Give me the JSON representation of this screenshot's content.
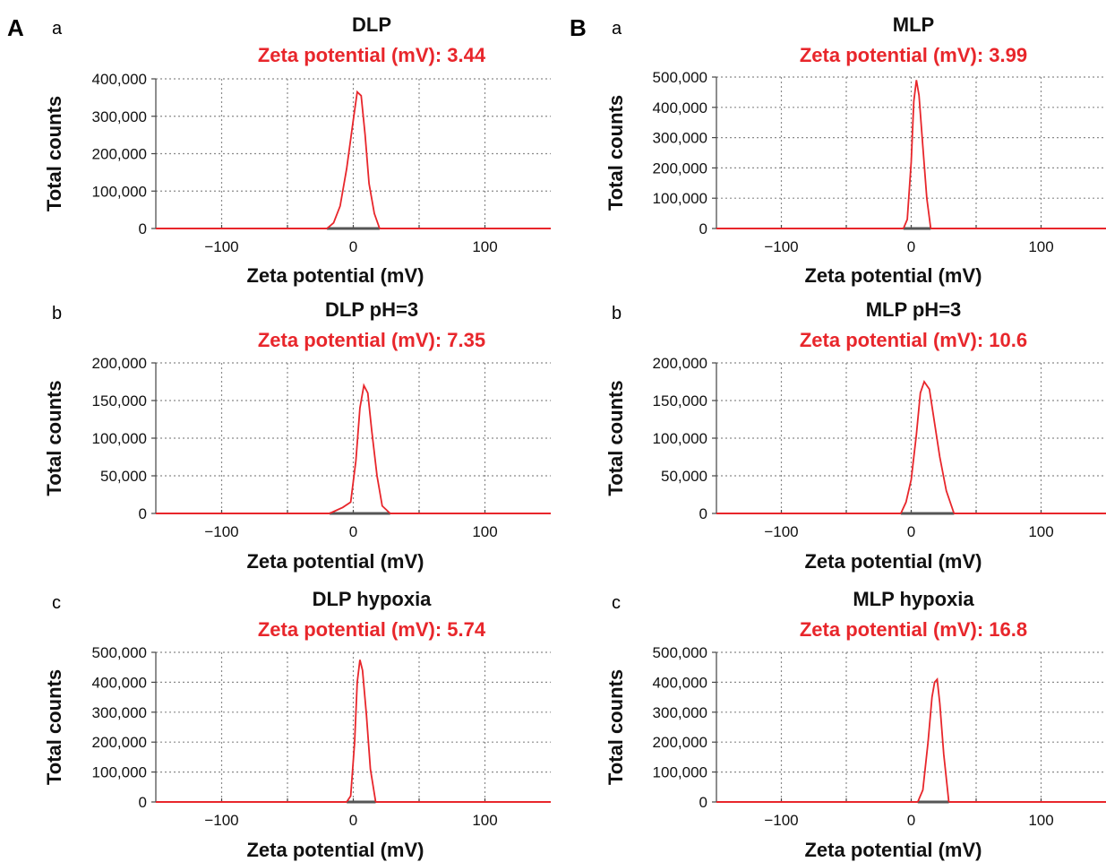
{
  "panels": [
    {
      "letter": "A"
    },
    {
      "letter": "B"
    }
  ],
  "chart_data": [
    {
      "type": "line",
      "sublabel": "a",
      "title": "DLP",
      "subtitle": "Zeta potential (mV): 3.44",
      "xlabel": "Zeta potential (mV)",
      "ylabel": "Total counts",
      "xlim": [
        -150,
        150
      ],
      "ylim": [
        0,
        400000
      ],
      "xticks": [
        -100,
        0,
        100
      ],
      "xtick_labels": [
        "−100",
        "0",
        "100"
      ],
      "yticks": [
        0,
        100000,
        200000,
        300000,
        400000
      ],
      "ytick_labels": [
        "0",
        "100,000",
        "200,000",
        "300,000",
        "400,000"
      ],
      "grid": true,
      "series": [
        {
          "color": "#e8262b",
          "x": [
            -150,
            -20,
            -15,
            -10,
            -5,
            0,
            3,
            6,
            9,
            12,
            16,
            20,
            150
          ],
          "y": [
            0,
            0,
            15000,
            60000,
            160000,
            290000,
            365000,
            355000,
            250000,
            120000,
            40000,
            0,
            0
          ]
        }
      ]
    },
    {
      "type": "line",
      "sublabel": "b",
      "title": "DLP pH=3",
      "subtitle": "Zeta potential (mV): 7.35",
      "xlabel": "Zeta potential (mV)",
      "ylabel": "Total counts",
      "xlim": [
        -150,
        150
      ],
      "ylim": [
        0,
        200000
      ],
      "xticks": [
        -100,
        0,
        100
      ],
      "xtick_labels": [
        "−100",
        "0",
        "100"
      ],
      "yticks": [
        0,
        50000,
        100000,
        150000,
        200000
      ],
      "ytick_labels": [
        "0",
        "50,000",
        "100,000",
        "150,000",
        "200,000"
      ],
      "grid": true,
      "series": [
        {
          "color": "#e8262b",
          "x": [
            -150,
            -18,
            -8,
            -2,
            2,
            5,
            8,
            11,
            14,
            18,
            22,
            28,
            150
          ],
          "y": [
            0,
            0,
            8000,
            15000,
            70000,
            140000,
            170000,
            160000,
            110000,
            50000,
            10000,
            0,
            0
          ]
        }
      ]
    },
    {
      "type": "line",
      "sublabel": "c",
      "title": "DLP hypoxia",
      "subtitle": "Zeta potential (mV): 5.74",
      "xlabel": "Zeta potential (mV)",
      "ylabel": "Total counts",
      "xlim": [
        -150,
        150
      ],
      "ylim": [
        0,
        500000
      ],
      "xticks": [
        -100,
        0,
        100
      ],
      "xtick_labels": [
        "−100",
        "0",
        "100"
      ],
      "yticks": [
        0,
        100000,
        200000,
        300000,
        400000,
        500000
      ],
      "ytick_labels": [
        "0",
        "100,000",
        "200,000",
        "300,000",
        "400,000",
        "500,000"
      ],
      "grid": true,
      "series": [
        {
          "color": "#e8262b",
          "x": [
            -150,
            -5,
            -2,
            1,
            3,
            5,
            7,
            10,
            13,
            17,
            150
          ],
          "y": [
            0,
            0,
            20000,
            200000,
            400000,
            475000,
            440000,
            290000,
            110000,
            0,
            0
          ]
        }
      ]
    },
    {
      "type": "line",
      "sublabel": "a",
      "title": "MLP",
      "subtitle": "Zeta potential (mV): 3.99",
      "xlabel": "Zeta potential (mV)",
      "ylabel": "Total counts",
      "xlim": [
        -150,
        150
      ],
      "ylim": [
        0,
        500000
      ],
      "xticks": [
        -100,
        0,
        100
      ],
      "xtick_labels": [
        "−100",
        "0",
        "100"
      ],
      "yticks": [
        0,
        100000,
        200000,
        300000,
        400000,
        500000
      ],
      "ytick_labels": [
        "0",
        "100,000",
        "200,000",
        "300,000",
        "400,000",
        "500,000"
      ],
      "grid": true,
      "series": [
        {
          "color": "#e8262b",
          "x": [
            -150,
            -6,
            -3,
            0,
            2,
            4,
            6,
            9,
            12,
            15,
            150
          ],
          "y": [
            0,
            0,
            30000,
            220000,
            420000,
            490000,
            440000,
            270000,
            100000,
            0,
            0
          ]
        }
      ]
    },
    {
      "type": "line",
      "sublabel": "b",
      "title": "MLP pH=3",
      "subtitle": "Zeta potential (mV): 10.6",
      "xlabel": "Zeta potential (mV)",
      "ylabel": "Total counts",
      "xlim": [
        -150,
        150
      ],
      "ylim": [
        0,
        200000
      ],
      "xticks": [
        -100,
        0,
        100
      ],
      "xtick_labels": [
        "−100",
        "0",
        "100"
      ],
      "yticks": [
        0,
        50000,
        100000,
        150000,
        200000
      ],
      "ytick_labels": [
        "0",
        "50,000",
        "100,000",
        "150,000",
        "200,000"
      ],
      "grid": true,
      "series": [
        {
          "color": "#e8262b",
          "x": [
            -150,
            -8,
            -4,
            0,
            4,
            7,
            10,
            14,
            18,
            22,
            27,
            33,
            150
          ],
          "y": [
            0,
            0,
            15000,
            45000,
            105000,
            160000,
            175000,
            165000,
            120000,
            75000,
            30000,
            0,
            0
          ]
        }
      ]
    },
    {
      "type": "line",
      "sublabel": "c",
      "title": "MLP hypoxia",
      "subtitle": "Zeta potential (mV): 16.8",
      "xlabel": "Zeta potential (mV)",
      "ylabel": "Total counts",
      "xlim": [
        -150,
        150
      ],
      "ylim": [
        0,
        500000
      ],
      "xticks": [
        -100,
        0,
        100
      ],
      "xtick_labels": [
        "−100",
        "0",
        "100"
      ],
      "yticks": [
        0,
        100000,
        200000,
        300000,
        400000,
        500000
      ],
      "ytick_labels": [
        "0",
        "100,000",
        "200,000",
        "300,000",
        "400,000",
        "500,000"
      ],
      "grid": true,
      "series": [
        {
          "color": "#e8262b",
          "x": [
            -150,
            5,
            9,
            13,
            16,
            18,
            20,
            22,
            25,
            29,
            150
          ],
          "y": [
            0,
            0,
            40000,
            200000,
            350000,
            400000,
            410000,
            330000,
            160000,
            0,
            0
          ]
        }
      ]
    }
  ]
}
